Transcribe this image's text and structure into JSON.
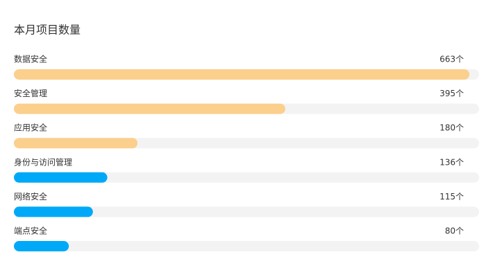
{
  "chart_data": {
    "type": "progress-bar",
    "title": "本月项目数量",
    "categories": [
      "数据安全",
      "安全管理",
      "应用安全",
      "身份与访问管理",
      "网络安全",
      "端点安全"
    ],
    "values": [
      663,
      395,
      180,
      136,
      115,
      80
    ],
    "value_labels": [
      "663个",
      "395个",
      "180个",
      "136个",
      "115个",
      "80个"
    ],
    "colors": [
      "#fbcf8c",
      "#fbcf8c",
      "#fbcf8c",
      "#00a9f7",
      "#00a9f7",
      "#00a9f7"
    ],
    "track_color": "#f3f3f3"
  }
}
